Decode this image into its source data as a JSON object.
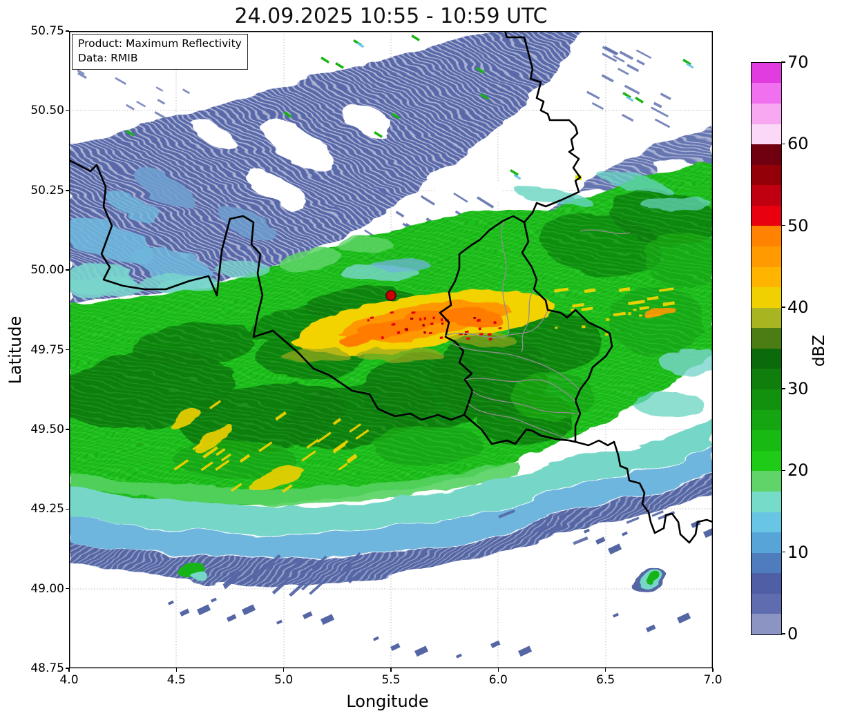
{
  "title": "24.09.2025 10:55 - 10:59 UTC",
  "info_box": {
    "product_line": "Product: Maximum Reflectivity",
    "data_line": "Data: RMIB"
  },
  "axes": {
    "xlabel": "Longitude",
    "ylabel": "Latitude",
    "x_tick_labels": [
      "4.0",
      "4.5",
      "5.0",
      "5.5",
      "6.0",
      "6.5",
      "7.0"
    ],
    "x_tick_values": [
      4.0,
      4.5,
      5.0,
      5.5,
      6.0,
      6.5,
      7.0
    ],
    "y_tick_labels": [
      "50.75",
      "50.50",
      "50.25",
      "50.00",
      "49.75",
      "49.50",
      "49.25",
      "49.00",
      "48.75"
    ],
    "y_tick_values": [
      50.75,
      50.5,
      50.25,
      50.0,
      49.75,
      49.5,
      49.25,
      49.0,
      48.75
    ],
    "xlim": [
      4.0,
      7.0
    ],
    "ylim": [
      48.75,
      50.75
    ]
  },
  "colorbar": {
    "label": "dBZ",
    "tick_labels": [
      "0",
      "10",
      "20",
      "30",
      "40",
      "50",
      "60",
      "70"
    ],
    "tick_values": [
      0,
      10,
      20,
      30,
      40,
      50,
      60,
      70
    ],
    "vmin": 0,
    "vmax": 70,
    "segment_step": 2.5,
    "colors_bottom_to_top": [
      "#8c94c4",
      "#5f6cb0",
      "#4f5fa5",
      "#4f7cbc",
      "#57a4d8",
      "#68c6e4",
      "#74dcc8",
      "#60d468",
      "#1ecb16",
      "#18b912",
      "#15a511",
      "#12910e",
      "#0f7e0c",
      "#0b6a09",
      "#4c7c14",
      "#a8b520",
      "#f0d000",
      "#ffb400",
      "#ff9a00",
      "#ff8300",
      "#e8000e",
      "#c00010",
      "#940008",
      "#700010",
      "#fcd8f8",
      "#f8a8f0",
      "#f070f0",
      "#e03ce0"
    ]
  },
  "chart_data": {
    "type": "heatmap",
    "title": "24.09.2025 10:55 - 10:59 UTC",
    "product": "Maximum Reflectivity",
    "source": "RMIB",
    "xlabel": "Longitude",
    "ylabel": "Latitude",
    "xlim": [
      4.0,
      7.0
    ],
    "ylim": [
      48.75,
      50.75
    ],
    "grid": true,
    "colorbar_label": "dBZ",
    "colorbar_range": [
      0,
      70
    ],
    "legend_position": "right colorbar",
    "radar_site_marker": {
      "lon": 5.5,
      "lat": 49.92,
      "style": "red filled circle"
    },
    "map_lines": {
      "black": "national borders (Belgium, France, Germany, Luxembourg)",
      "gray": "regional borders inside Luxembourg"
    },
    "regions": [
      {
        "name": "stratiform light precipitation, north band",
        "lon": [
          4.0,
          7.0
        ],
        "lat": [
          49.95,
          50.75
        ],
        "dbz": [
          0,
          15
        ],
        "texture": "slate-blue radial streaks with white gaps"
      },
      {
        "name": "main rain band",
        "lon": [
          4.0,
          7.0
        ],
        "lat": [
          49.3,
          50.3
        ],
        "dbz": [
          20,
          40
        ],
        "texture": "green with dark-green embedded areas"
      },
      {
        "name": "heavy rain core",
        "lon": [
          5.0,
          5.95
        ],
        "lat": [
          49.75,
          49.95
        ],
        "dbz": [
          40,
          55
        ],
        "texture": "yellow-orange arcs with red speckles around radar site"
      },
      {
        "name": "yellow cells east of Luxembourg border",
        "lon": [
          6.2,
          6.85
        ],
        "lat": [
          49.85,
          49.98
        ],
        "dbz": [
          40,
          45
        ]
      },
      {
        "name": "scattered yellow streaks southwest",
        "lon": [
          4.3,
          5.35
        ],
        "lat": [
          49.3,
          49.7
        ],
        "dbz": [
          40,
          45
        ]
      },
      {
        "name": "southern transition band",
        "lon": [
          4.0,
          7.0
        ],
        "lat": [
          48.95,
          49.4
        ],
        "dbz": [
          0,
          20
        ],
        "texture": "cyan, light blue then ragged slate-blue edge"
      },
      {
        "name": "isolated convective cell",
        "lon": [
          6.6,
          6.8
        ],
        "lat": [
          48.97,
          49.08
        ],
        "dbz": [
          10,
          25
        ]
      },
      {
        "name": "scattered weak echoes south",
        "lon": [
          4.4,
          7.0
        ],
        "lat": [
          48.78,
          49.25
        ],
        "dbz": [
          0,
          10
        ]
      },
      {
        "name": "tiny clear-air echoes north",
        "lon": [
          4.2,
          7.0
        ],
        "lat": [
          50.3,
          50.75
        ],
        "dbz": [
          15,
          25
        ]
      }
    ]
  }
}
